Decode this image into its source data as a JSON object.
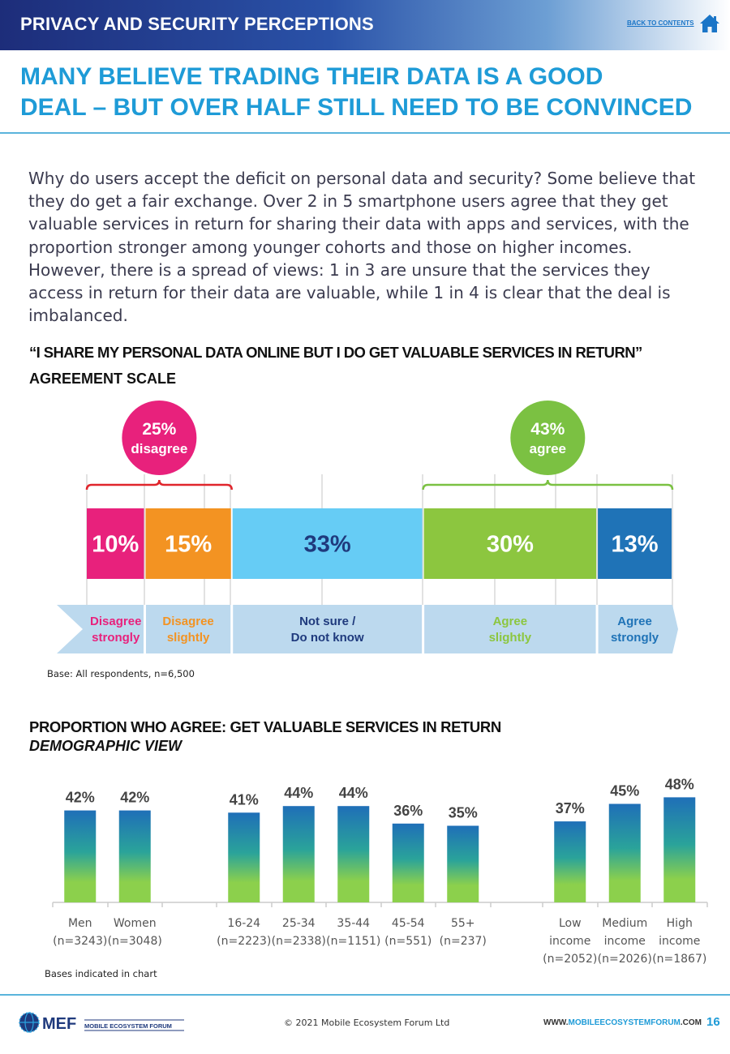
{
  "header": {
    "section_title": "PRIVACY AND SECURITY PERCEPTIONS",
    "back_link": "BACK TO CONTENTS"
  },
  "headline": {
    "line1": "MANY BELIEVE TRADING THEIR DATA IS A GOOD",
    "line2": "DEAL – BUT OVER HALF STILL NEED TO BE CONVINCED"
  },
  "intro": "Why do users accept the deficit on personal data and security? Some believe that they do get a fair exchange. Over 2 in 5 smartphone users agree that they get valuable services in return for sharing their data with apps and services, with the proportion stronger among younger cohorts and those on higher incomes. However, there is a spread of views: 1 in 3 are unsure that the services they access in return for their data are valuable, while 1 in 4 is clear that the deal is imbalanced.",
  "stack_section": {
    "quote": "“I SHARE MY PERSONAL DATA ONLINE BUT I DO GET VALUABLE SERVICES IN RETURN”",
    "subtitle": "AGREEMENT SCALE",
    "base": "Base: All respondents, n=6,500"
  },
  "demo_section": {
    "title": "PROPORTION WHO AGREE: GET VALUABLE SERVICES IN RETURN",
    "subtitle": "DEMOGRAPHIC VIEW",
    "base": "Bases indicated in chart"
  },
  "footer": {
    "logo_text": "MEF",
    "logo_subtext": "MOBILE ECOSYSTEM FORUM",
    "copyright": "© 2021 Mobile Ecosystem Forum Ltd",
    "website_pre": "WWW.",
    "website_hl": "MOBILEECOSYSTEMFORUM",
    "website_post": ".COM",
    "page_number": "16"
  },
  "chart_data": [
    {
      "type": "bar",
      "orientation": "horizontal-stacked",
      "title": "“I SHARE MY PERSONAL DATA ONLINE BUT I DO GET VALUABLE SERVICES IN RETURN”",
      "subtitle": "AGREEMENT SCALE",
      "categories": [
        [
          "Disagree",
          "strongly"
        ],
        [
          "Disagree",
          "slightly"
        ],
        [
          "Not sure /",
          "Do not know"
        ],
        [
          "Agree",
          "slightly"
        ],
        [
          "Agree",
          "strongly"
        ]
      ],
      "values": [
        10,
        15,
        33,
        30,
        13
      ],
      "value_labels": [
        "10%",
        "15%",
        "33%",
        "30%",
        "13%"
      ],
      "colors": [
        "#e8217c",
        "#f39322",
        "#66ccf5",
        "#8cc63f",
        "#1f73b7"
      ],
      "label_colors": [
        "#ffffff",
        "#ffffff",
        "#1f3a7d",
        "#ffffff",
        "#ffffff"
      ],
      "category_colors": [
        "#e8217c",
        "#f39322",
        "#1f3a7d",
        "#8cc63f",
        "#1f73b7"
      ],
      "groupings": [
        {
          "value_label": "25%",
          "label": "disagree",
          "color": "#e8217c",
          "brace_color": "#e0252c",
          "from": 0,
          "to": 1
        },
        {
          "value_label": "43%",
          "label": "agree",
          "color": "#7bc142",
          "brace_color": "#7bc142",
          "from": 3,
          "to": 4
        }
      ],
      "grid": true
    },
    {
      "type": "bar",
      "title": "PROPORTION WHO AGREE: GET VALUABLE SERVICES IN RETURN",
      "subtitle": "DEMOGRAPHIC VIEW",
      "ylim": [
        0,
        60
      ],
      "groups": [
        {
          "categories": [
            [
              "Men",
              "(n=3243)"
            ],
            [
              "Women",
              "(n=3048)"
            ]
          ],
          "values": [
            42,
            42
          ],
          "value_labels": [
            "42%",
            "42%"
          ]
        },
        {
          "categories": [
            [
              "16-24",
              "(n=2223)"
            ],
            [
              "25-34",
              "(n=2338)"
            ],
            [
              "35-44",
              "(n=1151)"
            ],
            [
              "45-54",
              "(n=551)"
            ],
            [
              "55+",
              "(n=237)"
            ]
          ],
          "values": [
            41,
            44,
            44,
            36,
            35
          ],
          "value_labels": [
            "41%",
            "44%",
            "44%",
            "36%",
            "35%"
          ]
        },
        {
          "categories": [
            [
              "Low",
              "income",
              "(n=2052)"
            ],
            [
              "Medium",
              "income",
              "(n=2026)"
            ],
            [
              "High",
              "income",
              "(n=1867)"
            ]
          ],
          "values": [
            37,
            45,
            48
          ],
          "value_labels": [
            "37%",
            "45%",
            "48%"
          ]
        }
      ],
      "colors": {
        "top": "#1f6fb8",
        "mid": "#2aa39a",
        "bottom": "#8cd04c"
      },
      "grid": false
    }
  ]
}
